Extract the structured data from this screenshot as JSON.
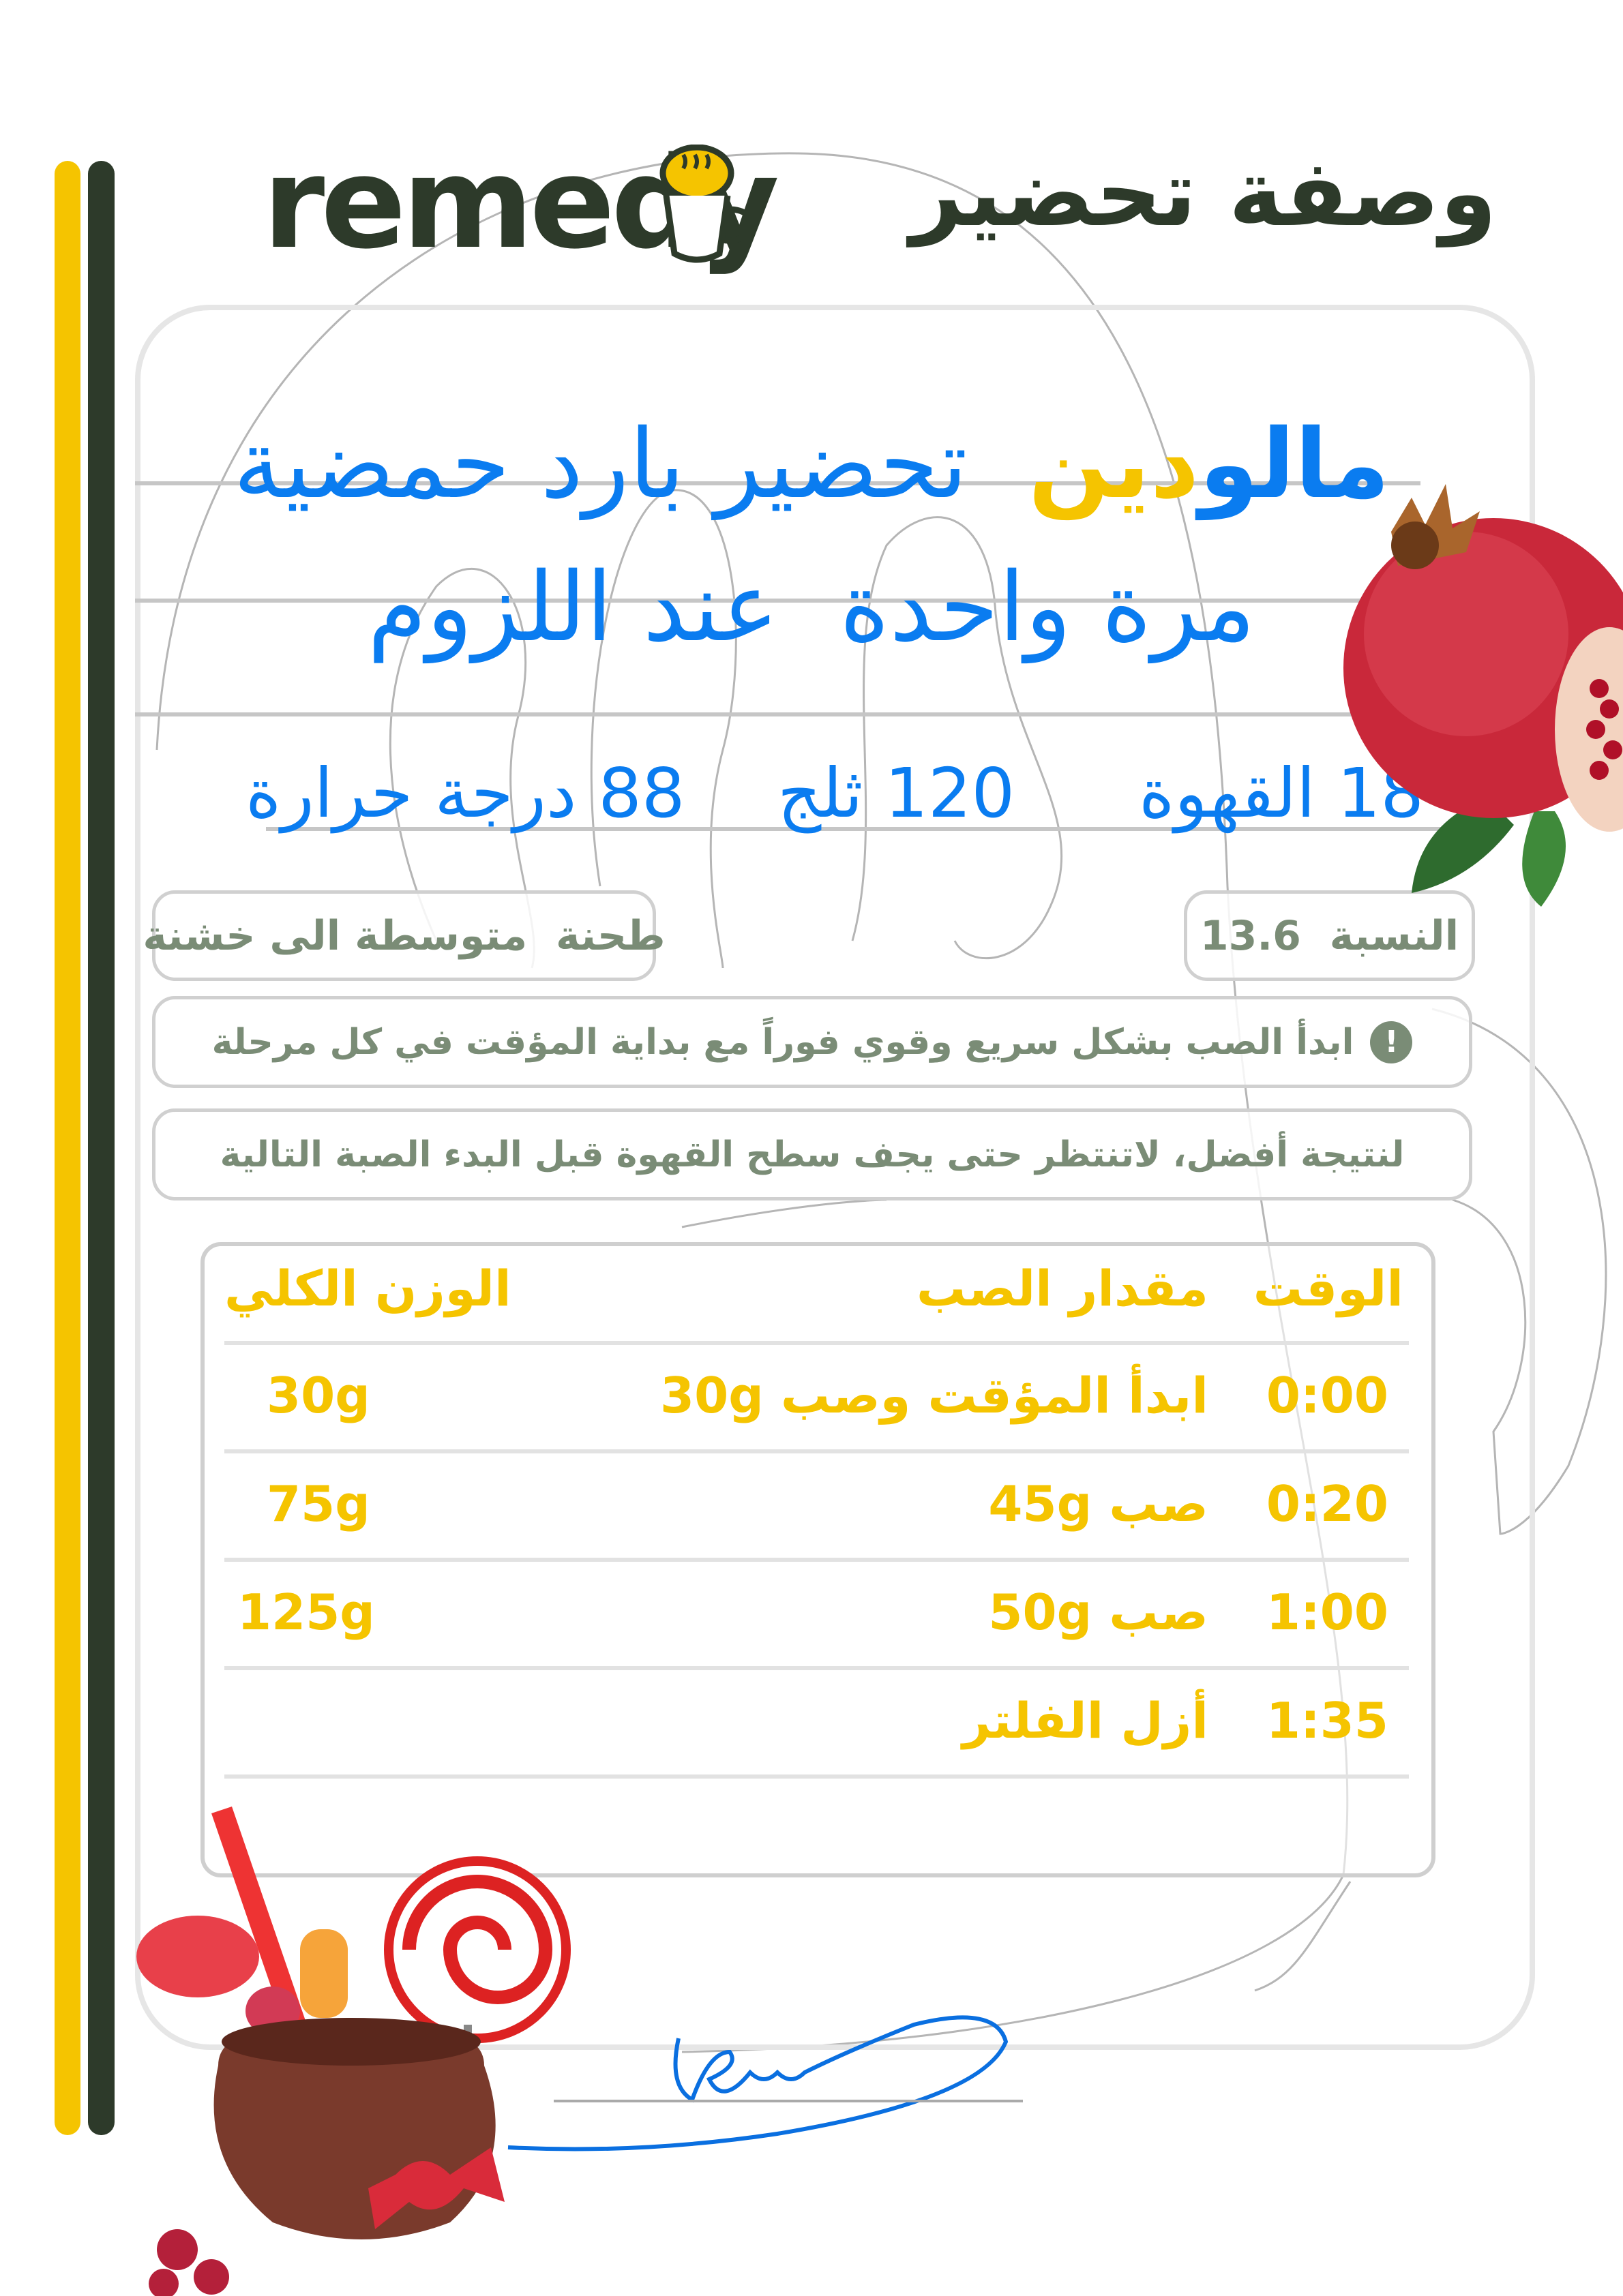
{
  "brand": {
    "logo": "remedy",
    "logo_icon": "coffee-mug-icon"
  },
  "document_title": "وصفة تحضير",
  "recipe": {
    "title_accent": "مالو",
    "title_accent2": "دين",
    "title_rest": "تحضير بارد حمضية",
    "subtitle": "مرة واحدة  عند اللزوم"
  },
  "stats": {
    "coffee": "18 القهوة",
    "ice": "120 ثلج",
    "temperature": "88 درجة حرارة"
  },
  "grind": "طحنة  متوسطة الى خشنة",
  "ratio": "النسبة  13.6",
  "tips": [
    {
      "icon": "exclamation-icon",
      "text": "ابدأ الصب بشكل سريع وقوي فوراً مع بداية المؤقت في كل مرحلة"
    },
    {
      "text": "لنتيجة أفضل، لاتنتظر حتى يجف سطح القهوة قبل البدء الصبة التالية"
    }
  ],
  "table": {
    "headers": {
      "time": "الوقت",
      "pour": "مقدار الصب",
      "total": "الوزن الكلي"
    },
    "rows": [
      {
        "time": "0:00",
        "pour": "ابدأ المؤقت وصب 30g",
        "total": "30g"
      },
      {
        "time": "0:20",
        "pour": "صب 45g",
        "total": "75g"
      },
      {
        "time": "1:00",
        "pour": "صب 50g",
        "total": "125g"
      },
      {
        "time": "1:35",
        "pour": "أزل الفلتر",
        "total": ""
      }
    ]
  },
  "colors": {
    "blue": "#0a7cf0",
    "yellow": "#f5c400",
    "dark_green": "#2d3a2a",
    "sage": "#7a8c76"
  }
}
